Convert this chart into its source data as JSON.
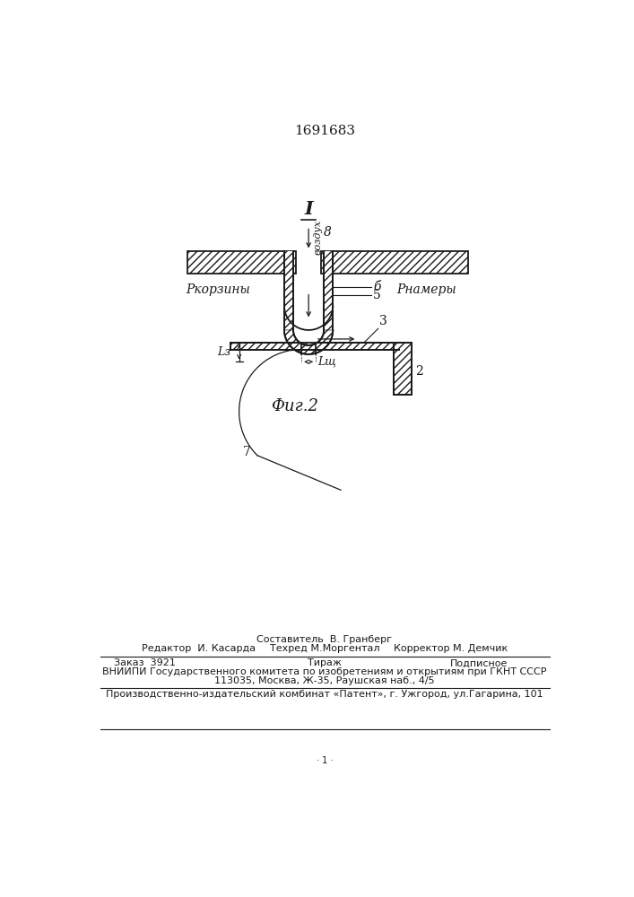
{
  "patent_number": "1691683",
  "fig_label": "Фиг.2",
  "section_label": "I",
  "bg_color": "#ffffff",
  "line_color": "#1a1a1a",
  "labels": {
    "vozdukh": "воздух",
    "p_korziny": "Ркорзины",
    "p_kamery": "Рнамеры",
    "num_8": "8",
    "num_6": "б",
    "num_5": "5",
    "num_3": "3",
    "num_2": "2",
    "num_7": "7",
    "L3": "Lз",
    "Lshch": "Lщ"
  },
  "footer": {
    "sostavitel": "Составитель  В. Гранберг",
    "tekhred": "Техред М.Моргентал",
    "redaktor": "Редактор  И. Касарда",
    "korrektor": "Корректор М. Демчик",
    "zakaz": "Заказ  3921",
    "tirazh": "Тираж",
    "podpisnoe": "Подписное",
    "vniip1": "ВНИИПИ Государственного комитета по изобретениям и открытиям при ГКНТ СССР",
    "vniip2": "113035, Москва, Ж-35, Раушская наб., 4/5",
    "proizv": "Производственно-издательский комбинат «Патент», г. Ужгород, ул.Гагарина, 101"
  }
}
